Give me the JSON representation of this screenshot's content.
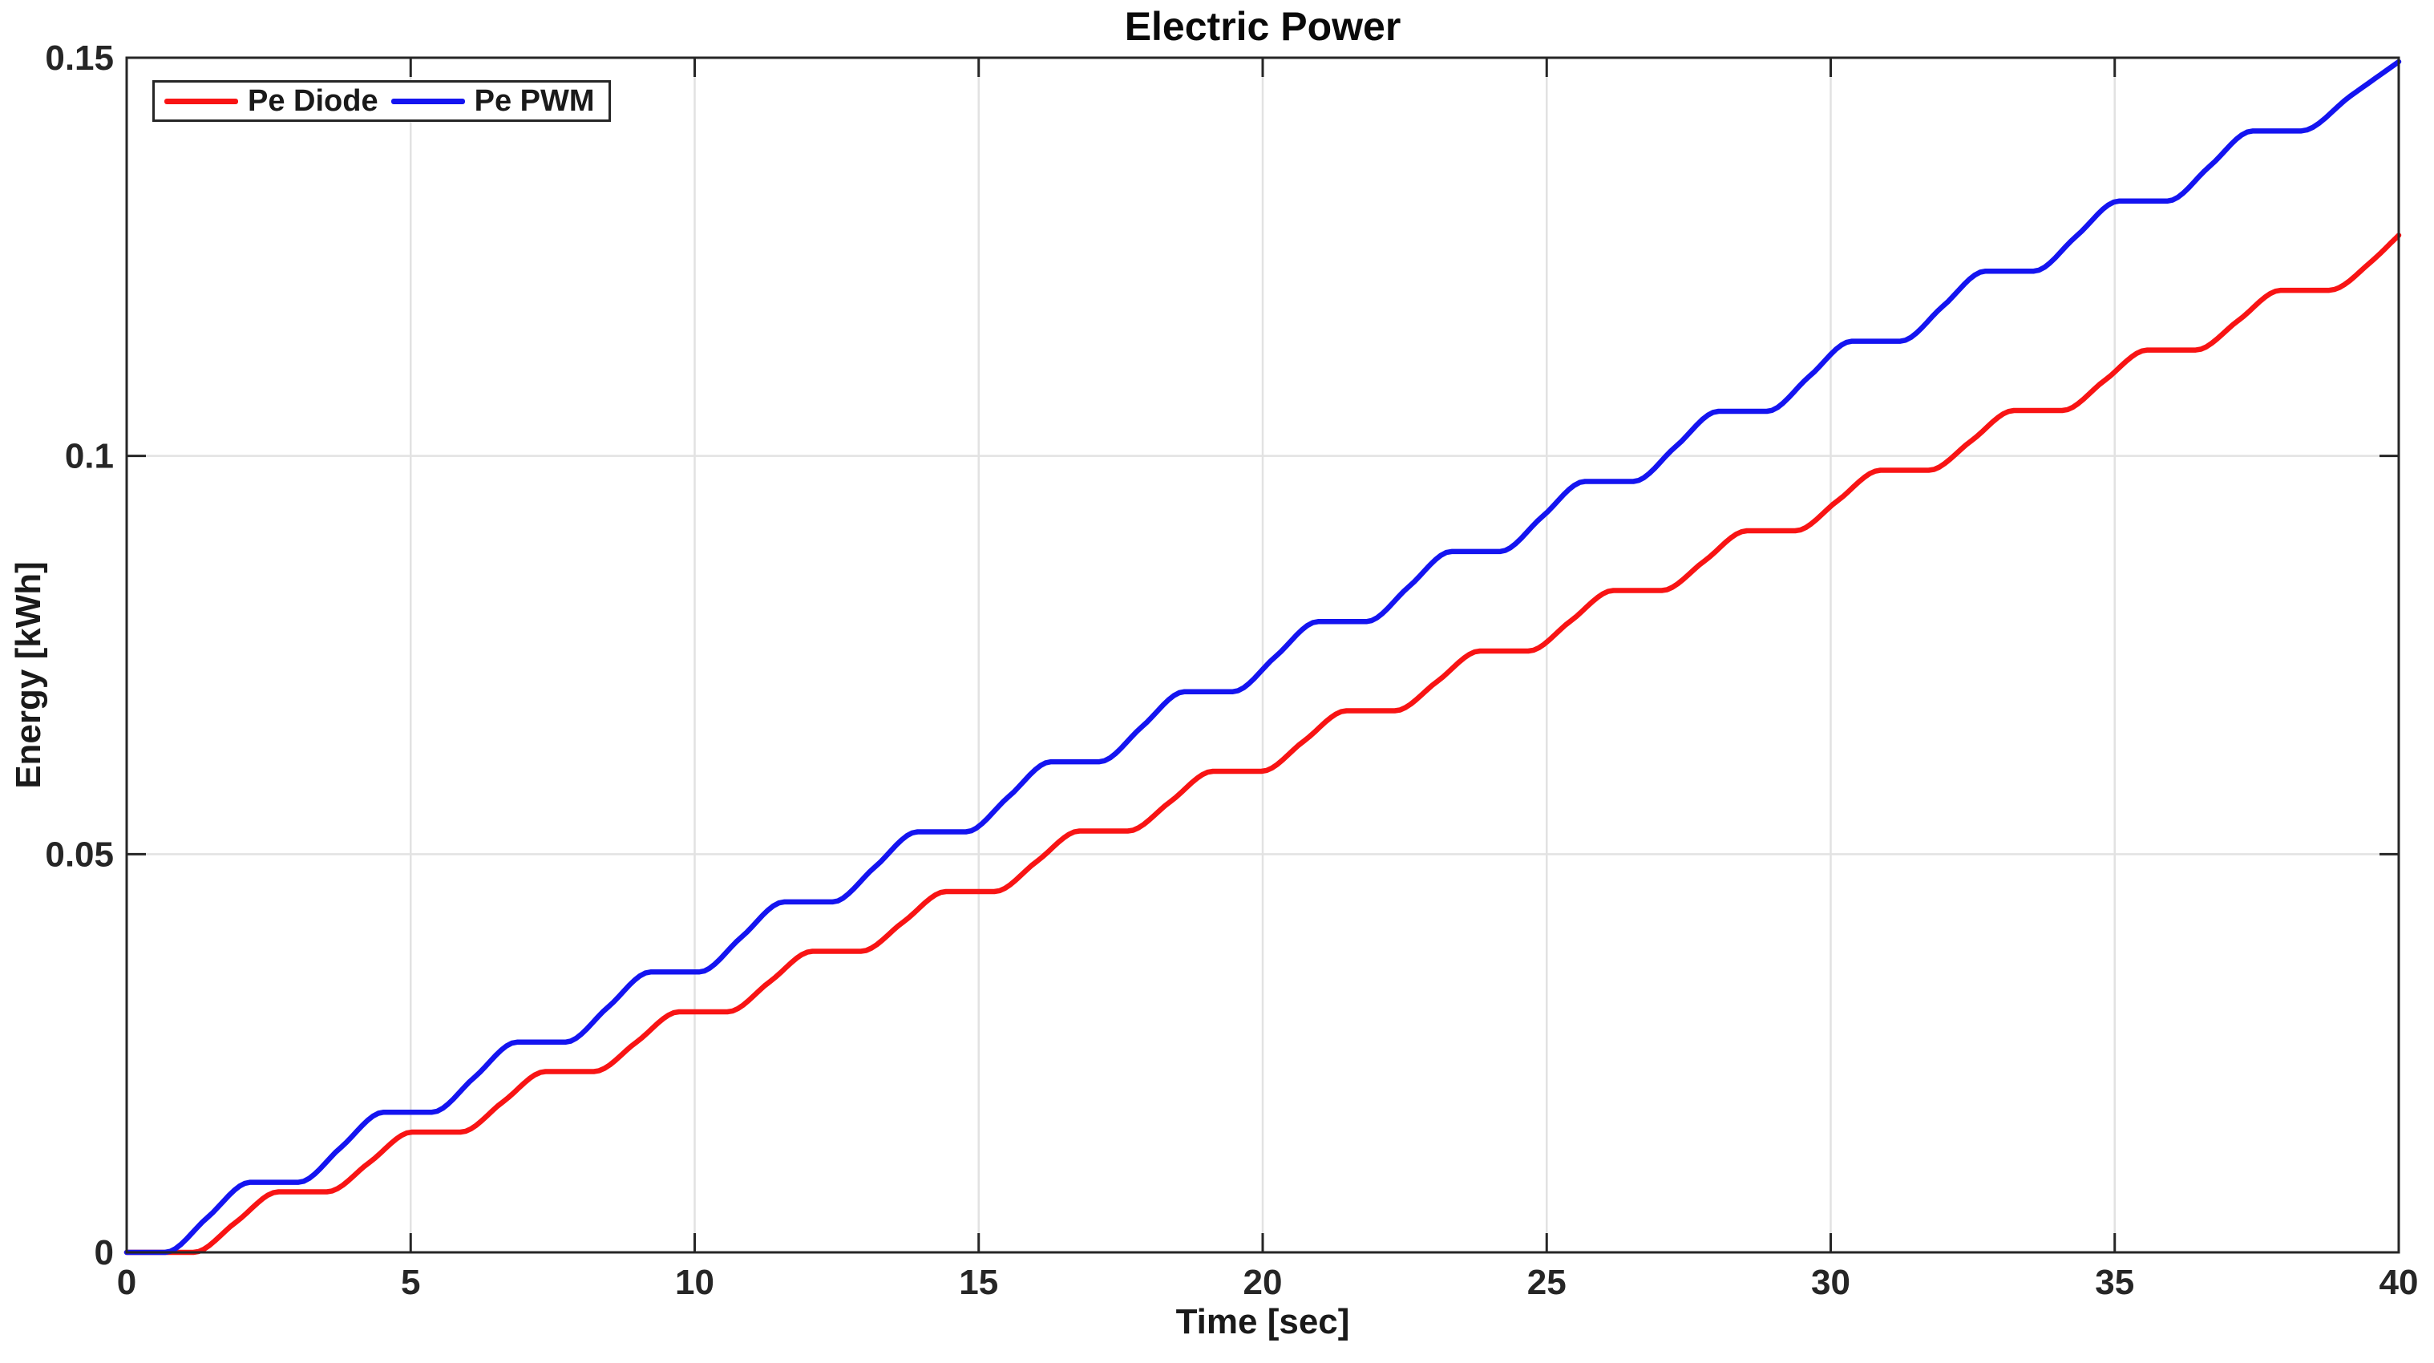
{
  "colors": {
    "axis": "#262626",
    "grid": "#e2e2e2",
    "tick_label": "#262626",
    "title_text": "#0a0a0a",
    "pe_diode": "#f81414",
    "pe_pwm": "#1414f0",
    "background": "#ffffff"
  },
  "legend": [
    {
      "label": "Pe Diode",
      "color": "#f81414"
    },
    {
      "label": "Pe PWM",
      "color": "#1414f0"
    }
  ],
  "chart_data": {
    "type": "line",
    "title": "Electric Power",
    "xlabel": "Time [sec]",
    "ylabel": "Energy [kWh]",
    "xlim": [
      0,
      40
    ],
    "ylim": [
      0,
      0.15
    ],
    "xticks": [
      0,
      5,
      10,
      15,
      20,
      25,
      30,
      35,
      40
    ],
    "xtick_labels": [
      "0",
      "5",
      "10",
      "15",
      "20",
      "25",
      "30",
      "35",
      "40"
    ],
    "yticks": [
      0,
      0.05,
      0.1,
      0.15
    ],
    "ytick_labels": [
      "0",
      "0.05",
      "0.1",
      "0.15"
    ],
    "grid": true,
    "legend_position": "top-left",
    "series": [
      {
        "name": "Pe Diode",
        "color": "#f81414",
        "points": [
          [
            0,
            0
          ],
          [
            1.175,
            0
          ],
          [
            1.925,
            0.0038
          ],
          [
            2.675,
            0.0076
          ],
          [
            3.525,
            0.0076
          ],
          [
            4.275,
            0.0113
          ],
          [
            5.025,
            0.0151
          ],
          [
            5.875,
            0.0151
          ],
          [
            6.625,
            0.0189
          ],
          [
            7.375,
            0.0227
          ],
          [
            8.225,
            0.0227
          ],
          [
            8.975,
            0.0264
          ],
          [
            9.725,
            0.0302
          ],
          [
            10.575,
            0.0302
          ],
          [
            11.325,
            0.034
          ],
          [
            12.075,
            0.0378
          ],
          [
            12.925,
            0.0378
          ],
          [
            13.675,
            0.0415
          ],
          [
            14.425,
            0.0453
          ],
          [
            15.275,
            0.0453
          ],
          [
            16.025,
            0.0491
          ],
          [
            16.775,
            0.0529
          ],
          [
            17.625,
            0.0529
          ],
          [
            18.375,
            0.0566
          ],
          [
            19.125,
            0.0604
          ],
          [
            19.975,
            0.0604
          ],
          [
            20.725,
            0.0642
          ],
          [
            21.475,
            0.068
          ],
          [
            22.325,
            0.068
          ],
          [
            23.075,
            0.0717
          ],
          [
            23.825,
            0.0755
          ],
          [
            24.675,
            0.0755
          ],
          [
            25.425,
            0.0793
          ],
          [
            26.175,
            0.0831
          ],
          [
            27.025,
            0.0831
          ],
          [
            27.775,
            0.0868
          ],
          [
            28.525,
            0.0906
          ],
          [
            29.375,
            0.0906
          ],
          [
            30.125,
            0.0944
          ],
          [
            30.875,
            0.0982
          ],
          [
            31.725,
            0.0982
          ],
          [
            32.475,
            0.1019
          ],
          [
            33.225,
            0.1057
          ],
          [
            34.075,
            0.1057
          ],
          [
            34.825,
            0.1095
          ],
          [
            35.575,
            0.1133
          ],
          [
            36.425,
            0.1133
          ],
          [
            37.175,
            0.117
          ],
          [
            37.925,
            0.1208
          ],
          [
            38.775,
            0.1208
          ],
          [
            39.5,
            0.1243
          ],
          [
            40,
            0.1277
          ]
        ]
      },
      {
        "name": "Pe PWM",
        "color": "#1414f0",
        "points": [
          [
            0,
            0
          ],
          [
            0.675,
            0
          ],
          [
            1.425,
            0.0044
          ],
          [
            2.175,
            0.0088
          ],
          [
            3.025,
            0.0088
          ],
          [
            3.775,
            0.0132
          ],
          [
            4.525,
            0.0176
          ],
          [
            5.375,
            0.0176
          ],
          [
            6.125,
            0.022
          ],
          [
            6.875,
            0.0264
          ],
          [
            7.725,
            0.0264
          ],
          [
            8.475,
            0.0308
          ],
          [
            9.225,
            0.0352
          ],
          [
            10.075,
            0.0352
          ],
          [
            10.825,
            0.0396
          ],
          [
            11.575,
            0.044
          ],
          [
            12.425,
            0.044
          ],
          [
            13.175,
            0.0484
          ],
          [
            13.925,
            0.0528
          ],
          [
            14.775,
            0.0528
          ],
          [
            15.525,
            0.0572
          ],
          [
            16.275,
            0.0616
          ],
          [
            17.125,
            0.0616
          ],
          [
            17.875,
            0.066
          ],
          [
            18.625,
            0.0704
          ],
          [
            19.475,
            0.0704
          ],
          [
            20.225,
            0.0748
          ],
          [
            20.975,
            0.0792
          ],
          [
            21.825,
            0.0792
          ],
          [
            22.575,
            0.0836
          ],
          [
            23.325,
            0.088
          ],
          [
            24.175,
            0.088
          ],
          [
            24.925,
            0.0924
          ],
          [
            25.675,
            0.0968
          ],
          [
            26.525,
            0.0968
          ],
          [
            27.275,
            0.1012
          ],
          [
            28.025,
            0.1056
          ],
          [
            28.875,
            0.1056
          ],
          [
            29.625,
            0.11
          ],
          [
            30.375,
            0.1144
          ],
          [
            31.225,
            0.1144
          ],
          [
            31.975,
            0.1188
          ],
          [
            32.725,
            0.1232
          ],
          [
            33.575,
            0.1232
          ],
          [
            34.325,
            0.1276
          ],
          [
            35.075,
            0.132
          ],
          [
            35.925,
            0.132
          ],
          [
            36.675,
            0.1364
          ],
          [
            37.425,
            0.1408
          ],
          [
            38.275,
            0.1408
          ],
          [
            39.15,
            0.1452
          ],
          [
            40,
            0.1495
          ]
        ]
      }
    ]
  }
}
